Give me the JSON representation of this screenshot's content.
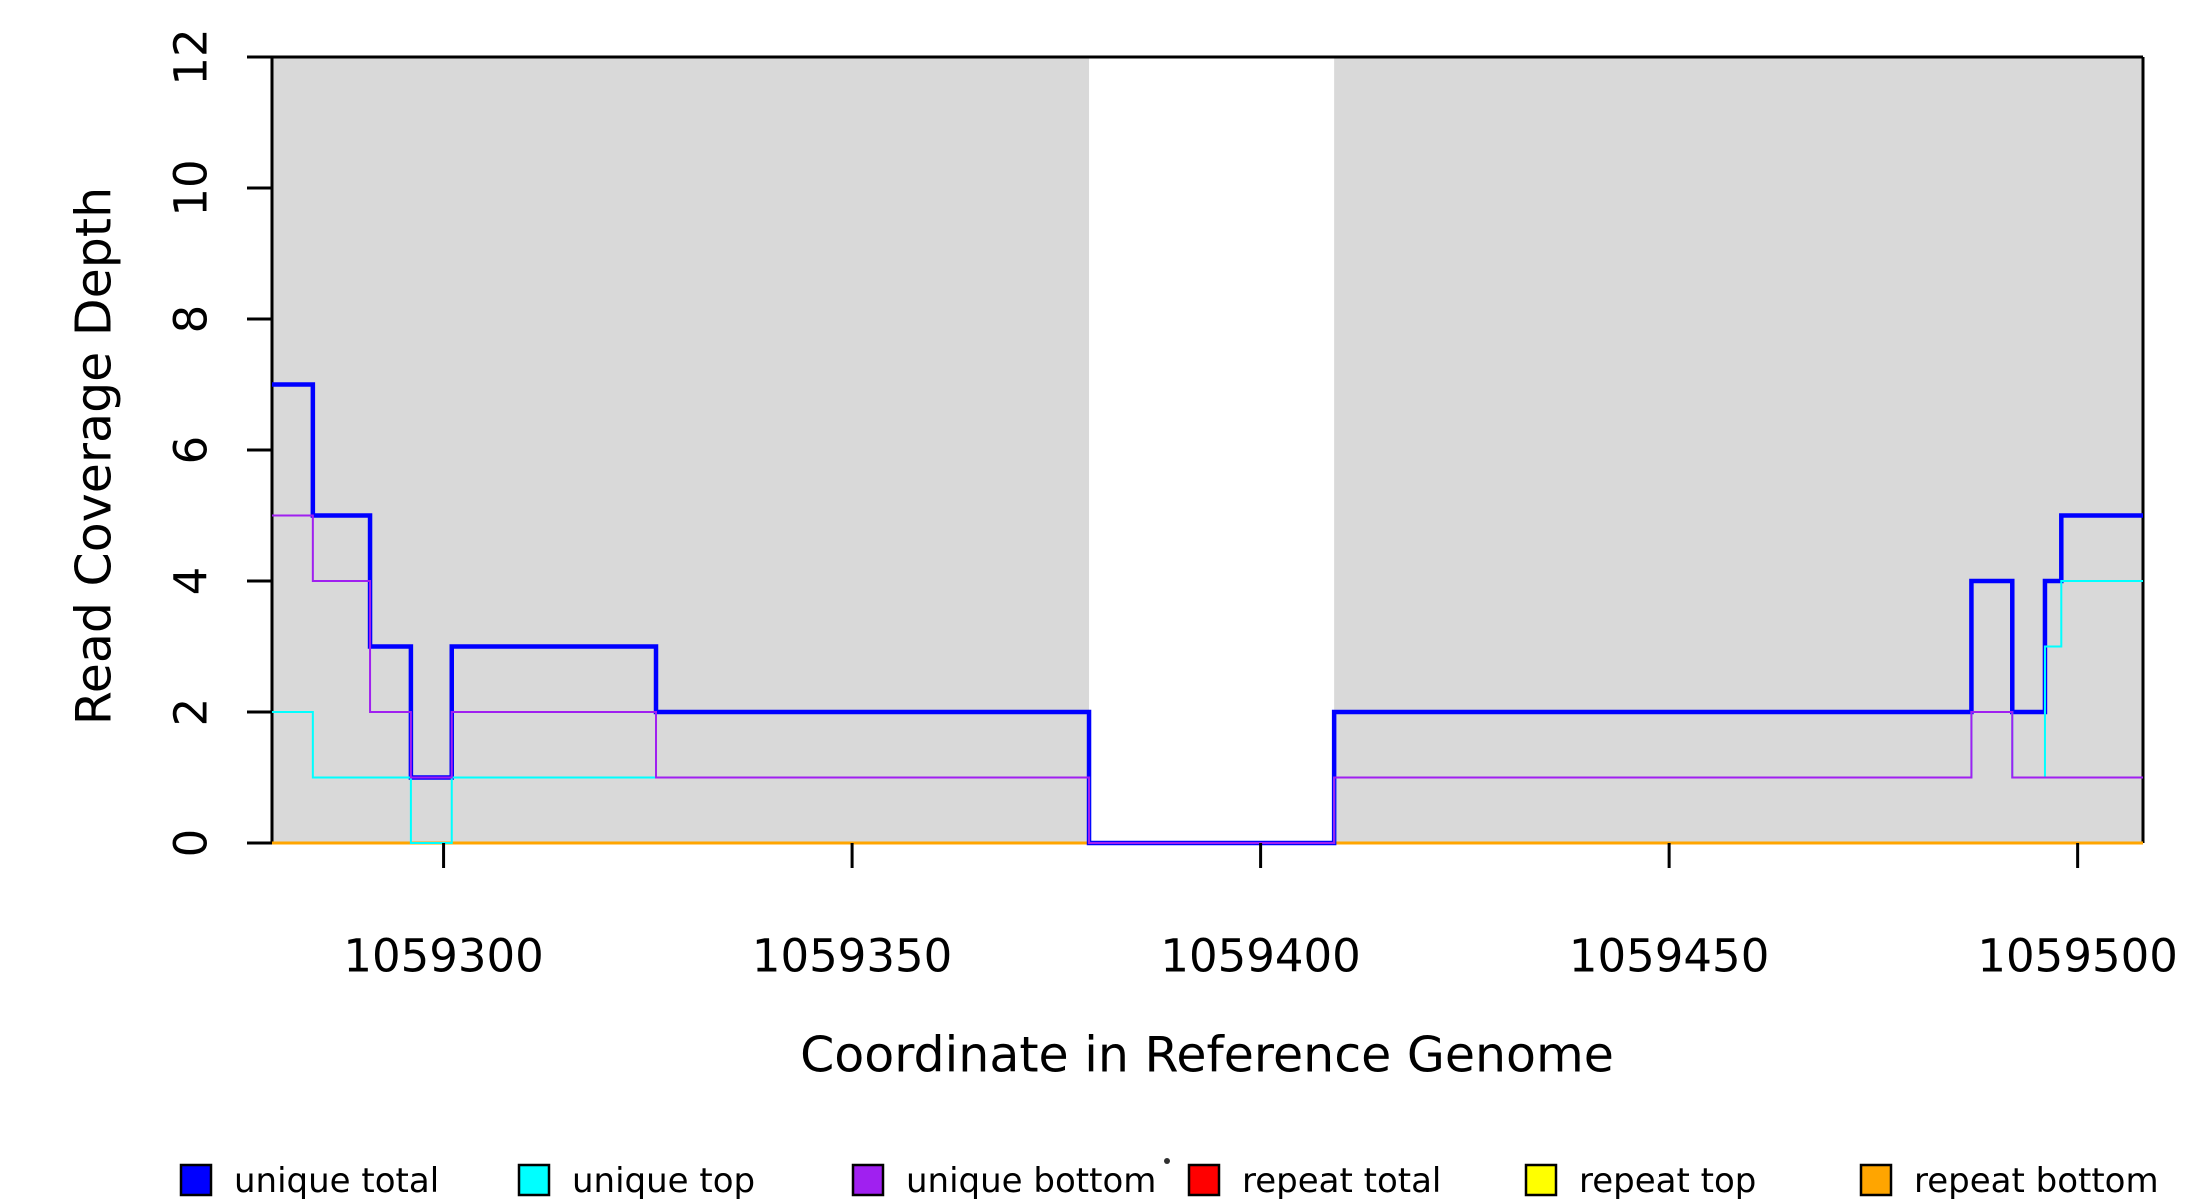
{
  "chart_data": {
    "type": "line",
    "subtype": "step-coverage-plot",
    "title": "",
    "xlabel": "Coordinate in Reference Genome",
    "ylabel": "Read Coverage Depth",
    "xlim": [
      1059279,
      1059508
    ],
    "ylim": [
      0,
      12
    ],
    "x_ticks": [
      1059300,
      1059350,
      1059400,
      1059450,
      1059500
    ],
    "y_ticks": [
      0,
      2,
      4,
      6,
      8,
      10,
      12
    ],
    "grid": false,
    "legend_position": "bottom",
    "shaded_regions": {
      "color": "#d9d9d9",
      "ranges": [
        [
          1059279,
          1059379
        ],
        [
          1059409,
          1059508
        ]
      ]
    },
    "uncovered_gap": [
      1059379,
      1059409
    ],
    "draw_order": [
      "repeat total",
      "repeat top",
      "repeat bottom",
      "unique total",
      "unique top",
      "unique bottom"
    ],
    "series": [
      {
        "name": "unique total",
        "color": "#0000ff",
        "line_width": 4.5,
        "segments": [
          [
            1059279,
            1059284,
            7
          ],
          [
            1059284,
            1059291,
            5
          ],
          [
            1059291,
            1059296,
            3
          ],
          [
            1059296,
            1059301,
            1
          ],
          [
            1059301,
            1059326,
            3
          ],
          [
            1059326,
            1059379,
            2
          ],
          [
            1059379,
            1059409,
            0
          ],
          [
            1059409,
            1059487,
            2
          ],
          [
            1059487,
            1059492,
            4
          ],
          [
            1059492,
            1059496,
            2
          ],
          [
            1059496,
            1059498,
            4
          ],
          [
            1059498,
            1059508,
            5
          ]
        ]
      },
      {
        "name": "unique top",
        "color": "#00ffff",
        "line_width": 2,
        "segments": [
          [
            1059279,
            1059284,
            2
          ],
          [
            1059284,
            1059296,
            1
          ],
          [
            1059296,
            1059301,
            0
          ],
          [
            1059301,
            1059379,
            1
          ],
          [
            1059379,
            1059409,
            0
          ],
          [
            1059409,
            1059487,
            1
          ],
          [
            1059487,
            1059492,
            2
          ],
          [
            1059492,
            1059496,
            1
          ],
          [
            1059496,
            1059498,
            3
          ],
          [
            1059498,
            1059508,
            4
          ]
        ]
      },
      {
        "name": "unique bottom",
        "color": "#a020f0",
        "line_width": 2,
        "segments": [
          [
            1059279,
            1059284,
            5
          ],
          [
            1059284,
            1059291,
            4
          ],
          [
            1059291,
            1059296,
            2
          ],
          [
            1059296,
            1059301,
            1
          ],
          [
            1059301,
            1059326,
            2
          ],
          [
            1059326,
            1059379,
            1
          ],
          [
            1059379,
            1059409,
            0
          ],
          [
            1059409,
            1059487,
            1
          ],
          [
            1059487,
            1059492,
            2
          ],
          [
            1059492,
            1059508,
            1
          ]
        ]
      },
      {
        "name": "repeat total",
        "color": "#ff0000",
        "line_width": 2,
        "segments": [
          [
            1059279,
            1059508,
            0
          ]
        ]
      },
      {
        "name": "repeat top",
        "color": "#ffff00",
        "line_width": 2,
        "segments": [
          [
            1059279,
            1059508,
            0
          ]
        ]
      },
      {
        "name": "repeat bottom",
        "color": "#ffa500",
        "line_width": 3,
        "segments": [
          [
            1059279,
            1059508,
            0
          ]
        ]
      }
    ]
  },
  "legend": {
    "items": [
      {
        "label": "unique total",
        "color": "#0000ff"
      },
      {
        "label": "unique top",
        "color": "#00ffff"
      },
      {
        "label": "unique bottom",
        "color": "#a020f0"
      },
      {
        "label": "repeat total",
        "color": "#ff0000"
      },
      {
        "label": "repeat top",
        "color": "#ffff00"
      },
      {
        "label": "repeat bottom",
        "color": "#ffa500"
      }
    ],
    "stray_dot": true
  }
}
